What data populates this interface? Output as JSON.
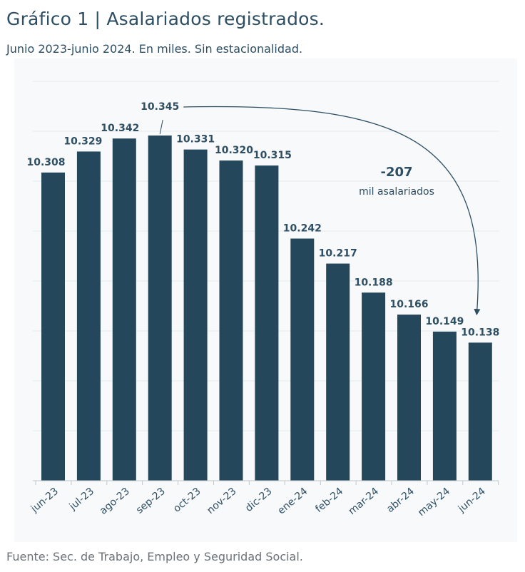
{
  "title": "Gráfico 1 | Asalariados registrados.",
  "subtitle": "Junio 2023-junio 2024. En miles. Sin estacionalidad.",
  "source": "Fuente: Sec. de Trabajo, Empleo y Seguridad Social.",
  "colors": {
    "bar": "#25475c",
    "plot_bg": "#f7f9fa",
    "grid": "#e6eaec",
    "text": "#2d4e63"
  },
  "chart_data": {
    "type": "bar",
    "categories": [
      "jun-23",
      "jul-23",
      "ago-23",
      "sep-23",
      "oct-23",
      "nov-23",
      "dic-23",
      "ene-24",
      "feb-24",
      "mar-24",
      "abr-24",
      "may-24",
      "jun-24"
    ],
    "values": [
      10308,
      10329,
      10342,
      10345,
      10331,
      10320,
      10315,
      10242,
      10217,
      10188,
      10166,
      10149,
      10138
    ],
    "value_labels": [
      "10.308",
      "10.329",
      "10.342",
      "10.345",
      "10.331",
      "10.320",
      "10.315",
      "10.242",
      "10.217",
      "10.188",
      "10.166",
      "10.149",
      "10.138"
    ],
    "ylim": [
      10000,
      10400
    ],
    "grid": true,
    "annotation": {
      "value": "-207",
      "text": "mil asalariados",
      "from": "sep-23",
      "to": "jun-24"
    }
  }
}
